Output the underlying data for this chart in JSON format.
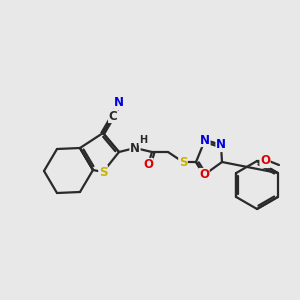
{
  "bg_color": "#e8e8e8",
  "bond_color": "#2a2a2a",
  "atom_colors": {
    "S": "#c8b400",
    "N": "#0000e0",
    "O": "#dd0000",
    "C": "#2a2a2a"
  },
  "figsize": [
    3.0,
    3.0
  ],
  "dpi": 100,
  "lw": 1.6,
  "fontsize": 8.5
}
